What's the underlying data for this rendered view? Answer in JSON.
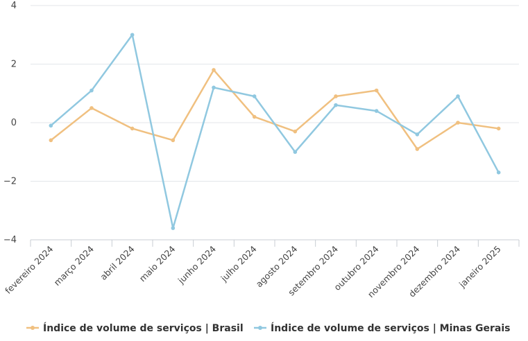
{
  "chart_data": {
    "type": "line",
    "title": "",
    "xlabel": "",
    "ylabel": "",
    "ylim": [
      -4,
      4
    ],
    "yticks": [
      4,
      2,
      0,
      -2,
      -4
    ],
    "ytick_labels": [
      "4",
      "2",
      "0",
      "−2",
      "−4"
    ],
    "categories": [
      "fevereiro 2024",
      "março 2024",
      "abril 2024",
      "maio 2024",
      "junho 2024",
      "julho 2024",
      "agosto 2024",
      "setembro 2024",
      "outubro 2024",
      "novembro 2024",
      "dezembro 2024",
      "janeiro 2025"
    ],
    "series": [
      {
        "name": "Índice de volume de serviços | Brasil",
        "color": "#f0c080",
        "values": [
          -0.6,
          0.5,
          -0.2,
          -0.6,
          1.8,
          0.2,
          -0.3,
          0.9,
          1.1,
          -0.9,
          0.0,
          -0.2
        ]
      },
      {
        "name": "Índice de volume de serviços | Minas Gerais",
        "color": "#90c8e0",
        "values": [
          -0.1,
          1.1,
          3.0,
          -3.6,
          1.2,
          0.9,
          -1.0,
          0.6,
          0.4,
          -0.4,
          0.9,
          -1.7
        ]
      }
    ],
    "grid": true,
    "legend": "bottom"
  }
}
